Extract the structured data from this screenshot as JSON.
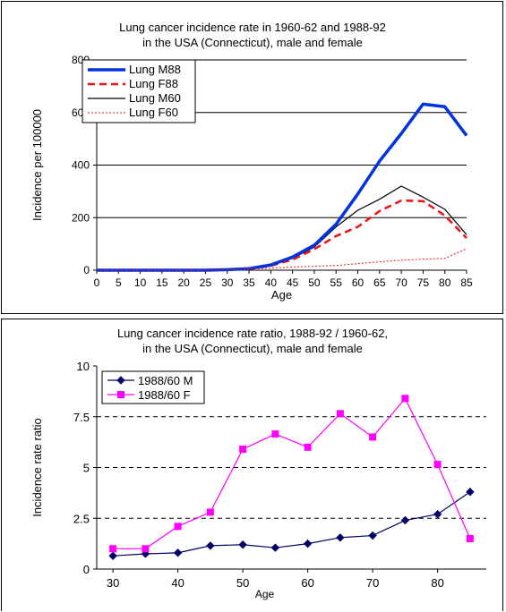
{
  "chart_data": [
    {
      "type": "line",
      "title": "Lung cancer incidence rate in 1960-62 and 1988-92",
      "subtitle": "in the USA (Connecticut), male and female",
      "xlabel": "Age",
      "ylabel": "Incidence per 100000",
      "categories": [
        "0",
        "5",
        "10",
        "15",
        "20",
        "25",
        "30",
        "35",
        "40",
        "45",
        "50",
        "55",
        "60",
        "65",
        "70",
        "75",
        "80",
        "85"
      ],
      "x": [
        0,
        5,
        10,
        15,
        20,
        25,
        30,
        35,
        40,
        45,
        50,
        55,
        60,
        65,
        70,
        75,
        80,
        85
      ],
      "ylim": [
        0,
        800
      ],
      "yticks": [
        "0",
        "200",
        "400",
        "600",
        "800"
      ],
      "grid": "horizontal",
      "legend": "top-left",
      "series": [
        {
          "name": "Lung M88",
          "color": "#0033dd",
          "values": [
            0,
            0,
            0,
            0,
            0,
            0,
            2,
            6,
            20,
            50,
            95,
            175,
            290,
            415,
            520,
            632,
            622,
            512
          ]
        },
        {
          "name": "Lung F88",
          "color": "#ee1111",
          "values": [
            0,
            0,
            0,
            0,
            0,
            0,
            2,
            5,
            17,
            40,
            80,
            130,
            165,
            225,
            265,
            263,
            208,
            122
          ]
        },
        {
          "name": "Lung M60",
          "color": "#000000",
          "values": [
            0,
            0,
            0,
            0,
            0,
            0,
            3,
            7,
            19,
            45,
            88,
            165,
            228,
            270,
            320,
            278,
            232,
            135
          ]
        },
        {
          "name": "Lung F60",
          "color": "#ee1111",
          "values": [
            0,
            0,
            0,
            0,
            0,
            0,
            2,
            4,
            8,
            12,
            15,
            18,
            25,
            32,
            38,
            42,
            45,
            82
          ]
        }
      ]
    },
    {
      "type": "line",
      "title": "Lung cancer incidence rate ratio, 1988-92 / 1960-62,",
      "subtitle": "in the USA (Connecticut), male and female",
      "xlabel": "Age",
      "ylabel": "Incidence rate ratio",
      "x": [
        30,
        35,
        40,
        45,
        50,
        55,
        60,
        65,
        70,
        75,
        80,
        85
      ],
      "xticks": [
        "30",
        "40",
        "50",
        "60",
        "70",
        "80"
      ],
      "ylim": [
        0,
        10
      ],
      "yticks": [
        "0",
        "2.5",
        "5",
        "7.5",
        "10"
      ],
      "grid": "horizontal-dashed",
      "legend": "top-left",
      "series": [
        {
          "name": "1988/60 M",
          "color": "#000066",
          "marker": "diamond",
          "values": [
            0.65,
            0.75,
            0.8,
            1.15,
            1.2,
            1.05,
            1.25,
            1.55,
            1.65,
            2.4,
            2.7,
            3.8
          ]
        },
        {
          "name": "1988/60 F",
          "color": "#ff00ff",
          "marker": "square",
          "values": [
            1.0,
            1.0,
            2.1,
            2.8,
            5.9,
            6.65,
            6.0,
            7.65,
            6.5,
            8.4,
            5.15,
            1.5
          ]
        }
      ]
    }
  ]
}
